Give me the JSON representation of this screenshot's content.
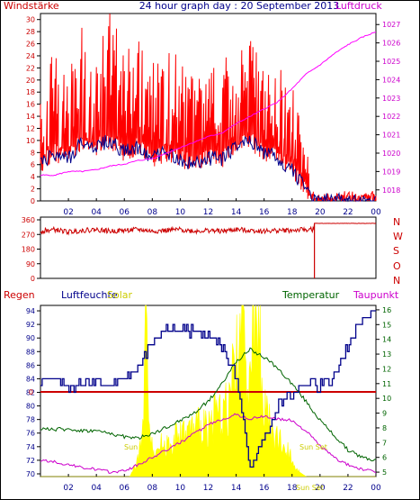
{
  "header": {
    "left_label": "Windstärke",
    "title": "24 hour graph day : 20 September 2013",
    "right_label": "Luftdruck"
  },
  "lower_legend": {
    "regen": "Regen",
    "luftfeuchte": "Luftfeuchte",
    "solar": "Solar",
    "temperatur": "Temperatur",
    "taupunkt": "Taupunkt"
  },
  "sun_labels": {
    "sunrise": "Sun",
    "sunset": "Sun Set",
    "sunset2": "Sun Set"
  },
  "colors": {
    "wind_gust": "#ff0000",
    "wind_avg": "#00008b",
    "pressure": "#ff00ff",
    "direction": "#cc0000",
    "humidity": "#00008b",
    "solar": "#ffff00",
    "temperature": "#006400",
    "dewpoint": "#cc00cc",
    "rain": "#cc0000",
    "axis_left": "#cc0000",
    "axis_right": "#cc00cc",
    "axis_temp": "#006400",
    "title": "#00008b"
  },
  "chart_data": [
    {
      "type": "line",
      "x_ticks": [
        "02",
        "04",
        "06",
        "08",
        "10",
        "12",
        "14",
        "16",
        "18",
        "20",
        "22",
        "00"
      ],
      "y_left": {
        "label": "Windstärke",
        "ticks": [
          0,
          2,
          4,
          6,
          8,
          10,
          12,
          14,
          16,
          18,
          20,
          22,
          24,
          26,
          28,
          30
        ],
        "range": [
          0,
          31
        ]
      },
      "y_right": {
        "label": "Luftdruck",
        "ticks": [
          1018,
          1019,
          1020,
          1021,
          1022,
          1023,
          1024,
          1025,
          1026,
          1027
        ],
        "range": [
          1017.4,
          1027.6
        ]
      },
      "series": [
        {
          "name": "Windstärke",
          "x": [
            0,
            1,
            2,
            3,
            4,
            5,
            6,
            7,
            8,
            9,
            10,
            11,
            12,
            13,
            14,
            15,
            16,
            17,
            18,
            19,
            19.3,
            20,
            21,
            22,
            23,
            24
          ],
          "y": [
            12,
            16,
            14,
            18,
            17,
            19,
            15,
            16,
            14,
            16,
            15,
            13,
            14,
            13,
            18,
            19,
            16,
            14,
            12,
            6,
            2,
            1,
            1,
            2,
            1,
            2
          ]
        },
        {
          "name": "",
          "x": [
            0,
            1,
            2,
            3,
            4,
            5,
            6,
            7,
            8,
            9,
            10,
            11,
            12,
            13,
            14,
            15,
            16,
            17,
            18,
            19,
            19.3,
            20,
            21,
            22,
            23,
            24
          ],
          "y": [
            6,
            8,
            7,
            10,
            9,
            10,
            8,
            9,
            7,
            8,
            7,
            6,
            7,
            7,
            9,
            10,
            8,
            7,
            5,
            2,
            0.3,
            0,
            0,
            0,
            0,
            0
          ]
        },
        {
          "name": "Luftdruck",
          "x": [
            0,
            1,
            2,
            3,
            4,
            5,
            6,
            7,
            8,
            9,
            10,
            11,
            12,
            13,
            14,
            15,
            16,
            17,
            18,
            19,
            20,
            21,
            22,
            23,
            24
          ],
          "y": [
            1018.8,
            1018.8,
            1019.0,
            1019.0,
            1019.1,
            1019.3,
            1019.4,
            1019.6,
            1019.7,
            1020.0,
            1020.3,
            1020.6,
            1020.9,
            1021.1,
            1021.6,
            1022.0,
            1022.4,
            1022.8,
            1023.5,
            1024.3,
            1024.8,
            1025.4,
            1025.9,
            1026.3,
            1026.6
          ]
        }
      ]
    },
    {
      "type": "line",
      "y_left": {
        "ticks": [
          0,
          90,
          180,
          270,
          360
        ],
        "range": [
          0,
          360
        ]
      },
      "y_right": {
        "ticks": [
          "N",
          "W",
          "S",
          "O",
          "N"
        ]
      },
      "x_ticks": [
        "02",
        "04",
        "06",
        "08",
        "10",
        "12",
        "14",
        "16",
        "18",
        "20",
        "22",
        "00"
      ],
      "series": [
        {
          "name": "",
          "x": [
            0,
            1,
            2,
            3,
            4,
            5,
            6,
            7,
            8,
            9,
            10,
            11,
            12,
            13,
            14,
            15,
            16,
            17,
            18,
            19,
            19.6,
            20,
            21,
            22,
            23,
            24
          ],
          "y": [
            290,
            300,
            285,
            295,
            300,
            290,
            295,
            300,
            290,
            295,
            300,
            290,
            295,
            290,
            300,
            295,
            290,
            295,
            295,
            300,
            300,
            340,
            340,
            340,
            340,
            340
          ]
        }
      ]
    },
    {
      "type": "line",
      "x_ticks": [
        "02",
        "04",
        "06",
        "08",
        "10",
        "12",
        "14",
        "16",
        "18",
        "20",
        "22",
        "00"
      ],
      "y_left": {
        "label": "Luftfeuchte",
        "ticks": [
          70,
          72,
          74,
          76,
          78,
          80,
          82,
          84,
          86,
          88,
          90,
          92,
          94
        ],
        "range": [
          69.6,
          94.8
        ]
      },
      "y_right": {
        "label": "Temperatur",
        "ticks": [
          5,
          6,
          7,
          8,
          9,
          10,
          11,
          12,
          13,
          14,
          15,
          16
        ],
        "range": [
          4.7,
          16.3
        ]
      },
      "rain_marker": "0",
      "series": [
        {
          "name": "Luftfeuchte",
          "x": [
            0,
            1,
            2,
            3,
            4,
            5,
            6,
            7,
            8,
            9,
            10,
            11,
            12,
            13,
            14,
            15,
            16,
            17,
            18,
            19,
            20,
            21,
            22,
            23,
            24
          ],
          "y": [
            84,
            84,
            83,
            83,
            84,
            83,
            84,
            86,
            89,
            91,
            91,
            91,
            91,
            89,
            84,
            71,
            75,
            80,
            82,
            83,
            83,
            84,
            89,
            93,
            94
          ]
        },
        {
          "name": "Temperatur",
          "x": [
            0,
            1,
            2,
            3,
            4,
            5,
            6,
            7,
            8,
            9,
            10,
            11,
            12,
            13,
            14,
            15,
            16,
            17,
            18,
            19,
            20,
            21,
            22,
            23,
            24
          ],
          "y": [
            8.0,
            7.9,
            7.9,
            7.8,
            7.8,
            7.6,
            7.4,
            7.3,
            7.6,
            8.0,
            8.5,
            9.0,
            9.8,
            11.0,
            12.5,
            13.3,
            12.8,
            12.0,
            11.0,
            9.8,
            8.5,
            7.5,
            6.5,
            6.0,
            5.8
          ]
        },
        {
          "name": "Taupunkt",
          "x": [
            0,
            1,
            2,
            3,
            4,
            5,
            6,
            7,
            8,
            9,
            10,
            11,
            12,
            13,
            14,
            15,
            16,
            17,
            18,
            19,
            20,
            21,
            22,
            23,
            24
          ],
          "y": [
            5.8,
            5.7,
            5.5,
            5.3,
            5.2,
            5.0,
            5.1,
            5.5,
            6.0,
            6.5,
            7.0,
            7.6,
            8.2,
            8.6,
            8.9,
            8.6,
            8.8,
            8.6,
            8.5,
            7.8,
            6.8,
            6.0,
            5.5,
            5.2,
            5.0
          ]
        },
        {
          "name": "Solar",
          "x": [
            0,
            6.4,
            7.0,
            7.3,
            7.5,
            8,
            9,
            10,
            11,
            12,
            13,
            13.5,
            14,
            14.5,
            15,
            15.5,
            16,
            16.5,
            17,
            17.5,
            18,
            18.5,
            19,
            24
          ],
          "y": [
            0,
            0,
            0.2,
            0.4,
            1.5,
            0.3,
            0.35,
            0.45,
            0.5,
            0.6,
            0.7,
            0.8,
            1.3,
            1.7,
            1.2,
            1.8,
            0.8,
            0.5,
            0.4,
            0.3,
            0.2,
            0.05,
            0,
            0
          ]
        }
      ]
    }
  ]
}
